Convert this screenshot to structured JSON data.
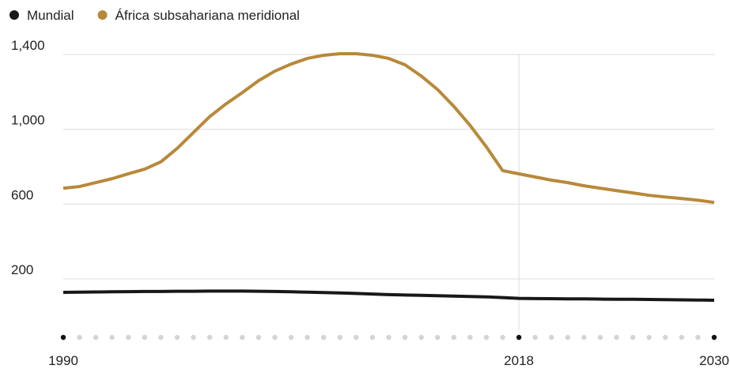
{
  "chart_data": {
    "type": "line",
    "x": [
      1990,
      1991,
      1992,
      1993,
      1994,
      1995,
      1996,
      1997,
      1998,
      1999,
      2000,
      2001,
      2002,
      2003,
      2004,
      2005,
      2006,
      2007,
      2008,
      2009,
      2010,
      2011,
      2012,
      2013,
      2014,
      2015,
      2016,
      2017,
      2018,
      2019,
      2020,
      2021,
      2022,
      2023,
      2024,
      2025,
      2026,
      2027,
      2028,
      2029,
      2030
    ],
    "series": [
      {
        "name": "Mundial",
        "color": "#1a1718",
        "values": [
          128,
          129,
          130,
          131,
          132,
          133,
          133,
          134,
          134,
          135,
          135,
          135,
          134,
          133,
          131,
          129,
          127,
          125,
          122,
          119,
          116,
          114,
          112,
          110,
          108,
          106,
          104,
          100,
          96,
          95,
          94,
          93,
          93,
          92,
          91,
          91,
          90,
          89,
          88,
          87,
          86
        ]
      },
      {
        "name": "África subsahariana meridional",
        "color": "#b8893a",
        "values": [
          685,
          694,
          715,
          736,
          762,
          787,
          826,
          898,
          983,
          1068,
          1136,
          1196,
          1260,
          1311,
          1349,
          1379,
          1396,
          1404,
          1404,
          1396,
          1379,
          1345,
          1285,
          1213,
          1123,
          1021,
          906,
          779,
          762,
          745,
          728,
          715,
          698,
          685,
          672,
          660,
          647,
          638,
          630,
          621,
          609
        ]
      }
    ],
    "xlim": [
      1990,
      2030
    ],
    "xticks": [
      1990,
      2018,
      2030
    ],
    "ylim": [
      0,
      1420
    ],
    "yticks": [
      {
        "value": 1400,
        "label": "1,400"
      },
      {
        "value": 1000,
        "label": "1,000"
      },
      600,
      200
    ],
    "grid": true
  }
}
